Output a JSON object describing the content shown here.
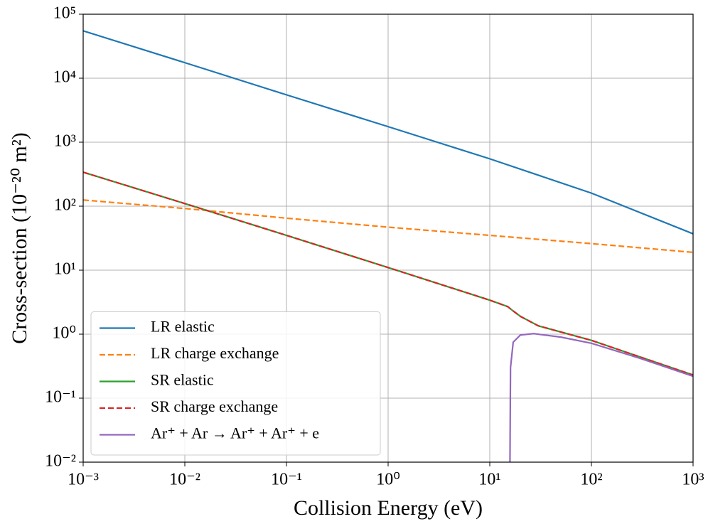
{
  "chart_data": {
    "type": "line",
    "xlabel": "Collision Energy (eV)",
    "ylabel": "Cross-section (10⁻²⁰ m²)",
    "xscale": "log",
    "yscale": "log",
    "grid": true,
    "legend": "lower left",
    "xlim": [
      0.001,
      1000
    ],
    "ylim": [
      0.01,
      100000
    ],
    "xticks": [
      {
        "value": 0.001,
        "label": "10⁻³"
      },
      {
        "value": 0.01,
        "label": "10⁻²"
      },
      {
        "value": 0.1,
        "label": "10⁻¹"
      },
      {
        "value": 1,
        "label": "10⁰"
      },
      {
        "value": 10,
        "label": "10¹"
      },
      {
        "value": 100,
        "label": "10²"
      },
      {
        "value": 1000,
        "label": "10³"
      }
    ],
    "yticks": [
      {
        "value": 0.01,
        "label": "10⁻²"
      },
      {
        "value": 0.1,
        "label": "10⁻¹"
      },
      {
        "value": 1,
        "label": "10⁰"
      },
      {
        "value": 10,
        "label": "10¹"
      },
      {
        "value": 100,
        "label": "10²"
      },
      {
        "value": 1000,
        "label": "10³"
      },
      {
        "value": 10000,
        "label": "10⁴"
      },
      {
        "value": 100000,
        "label": "10⁵"
      }
    ],
    "series": [
      {
        "name": "LR elastic",
        "color": "#1f77b4",
        "dash": "solid",
        "x": [
          0.001,
          0.01,
          0.1,
          1,
          10,
          100,
          1000
        ],
        "values": [
          55000,
          17500,
          5500,
          1750,
          550,
          160,
          37
        ]
      },
      {
        "name": "LR charge exchange",
        "color": "#ff7f0e",
        "dash": "dashed",
        "x": [
          0.001,
          0.01,
          0.1,
          1,
          10,
          100,
          1000
        ],
        "values": [
          125,
          92,
          65,
          47,
          35,
          26,
          19
        ]
      },
      {
        "name": "SR elastic",
        "color": "#2ca02c",
        "dash": "solid",
        "x": [
          0.001,
          0.01,
          0.1,
          1,
          10,
          15,
          17,
          20,
          30,
          100,
          1000
        ],
        "values": [
          340,
          110,
          35,
          11,
          3.4,
          2.7,
          2.3,
          1.9,
          1.35,
          0.8,
          0.23
        ]
      },
      {
        "name": "SR charge exchange",
        "color": "#d62728",
        "dash": "dashed",
        "x": [
          0.001,
          0.01,
          0.1,
          1,
          10,
          15,
          17,
          20,
          30,
          100,
          1000
        ],
        "values": [
          340,
          110,
          35,
          11,
          3.4,
          2.7,
          2.3,
          1.9,
          1.35,
          0.8,
          0.23
        ]
      },
      {
        "name": "Ar⁺ + Ar → Ar⁺ + Ar⁺ + e",
        "color": "#9467bd",
        "dash": "solid",
        "x": [
          15.8,
          16,
          17,
          20,
          27,
          50,
          100,
          300,
          1000
        ],
        "values": [
          0.01,
          0.3,
          0.75,
          0.97,
          1.02,
          0.9,
          0.72,
          0.42,
          0.22
        ]
      }
    ]
  }
}
